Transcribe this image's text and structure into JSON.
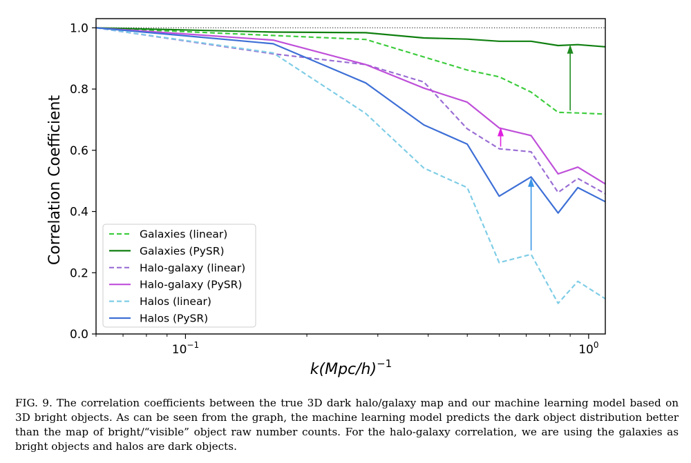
{
  "chart_data": {
    "type": "line",
    "xscale": "log",
    "xlim": [
      0.06,
      1.1
    ],
    "ylim": [
      0.0,
      1.03
    ],
    "xlabel": "k(Mpc/h)",
    "xlabel_superscript": "−1",
    "ylabel": "Correlation Coefficient",
    "xticks_major": [
      {
        "value": 0.1,
        "base": "10",
        "exp": "−1"
      },
      {
        "value": 1.0,
        "base": "10",
        "exp": "0"
      }
    ],
    "xticks_minor": [
      0.06,
      0.07,
      0.08,
      0.09,
      0.2,
      0.3,
      0.4,
      0.5,
      0.6,
      0.7,
      0.8,
      0.9
    ],
    "yticks": [
      "0.0",
      "0.2",
      "0.4",
      "0.6",
      "0.8",
      "1.0"
    ],
    "reference_line": {
      "y": 1.0,
      "style": "dotted",
      "color": "#000000"
    },
    "grid": false,
    "legend_position": "lower-left",
    "series": [
      {
        "name": "Galaxies (linear)",
        "color": "#3dcc3d",
        "dash": true,
        "x": [
          0.06,
          0.165,
          0.28,
          0.39,
          0.5,
          0.6,
          0.72,
          0.84,
          0.94,
          1.1
        ],
        "y": [
          1.0,
          0.975,
          0.962,
          0.905,
          0.862,
          0.84,
          0.79,
          0.724,
          0.722,
          0.718
        ]
      },
      {
        "name": "Galaxies (PySR)",
        "color": "#0f7f0f",
        "dash": false,
        "x": [
          0.06,
          0.165,
          0.28,
          0.39,
          0.5,
          0.6,
          0.72,
          0.84,
          0.94,
          1.1
        ],
        "y": [
          1.0,
          0.986,
          0.984,
          0.967,
          0.963,
          0.956,
          0.956,
          0.942,
          0.945,
          0.938
        ]
      },
      {
        "name": "Halo-galaxy (linear)",
        "color": "#9a6ed4",
        "dash": true,
        "x": [
          0.06,
          0.165,
          0.28,
          0.39,
          0.5,
          0.6,
          0.72,
          0.84,
          0.94,
          1.1
        ],
        "y": [
          1.0,
          0.915,
          0.88,
          0.823,
          0.67,
          0.605,
          0.595,
          0.462,
          0.508,
          0.458
        ]
      },
      {
        "name": "Halo-galaxy (PySR)",
        "color": "#bf4fd9",
        "dash": false,
        "x": [
          0.06,
          0.165,
          0.28,
          0.39,
          0.5,
          0.6,
          0.72,
          0.84,
          0.94,
          1.1
        ],
        "y": [
          1.0,
          0.96,
          0.88,
          0.803,
          0.757,
          0.673,
          0.648,
          0.523,
          0.545,
          0.49
        ]
      },
      {
        "name": "Halos (linear)",
        "color": "#7fcde6",
        "dash": true,
        "x": [
          0.06,
          0.165,
          0.28,
          0.39,
          0.5,
          0.6,
          0.72,
          0.84,
          0.94,
          1.1
        ],
        "y": [
          1.0,
          0.918,
          0.72,
          0.542,
          0.478,
          0.233,
          0.26,
          0.1,
          0.172,
          0.115
        ]
      },
      {
        "name": "Halos (PySR)",
        "color": "#3d6fd6",
        "dash": false,
        "x": [
          0.06,
          0.165,
          0.28,
          0.39,
          0.5,
          0.6,
          0.72,
          0.84,
          0.94,
          1.1
        ],
        "y": [
          1.0,
          0.948,
          0.82,
          0.683,
          0.62,
          0.45,
          0.513,
          0.395,
          0.478,
          0.432
        ]
      }
    ],
    "annotations": [
      {
        "type": "arrow",
        "color": "#1f8a1f",
        "x": 0.9,
        "y_from": 0.73,
        "y_to": 0.945
      },
      {
        "type": "arrow",
        "color": "#e020e0",
        "x": 0.605,
        "y_from": 0.612,
        "y_to": 0.675
      },
      {
        "type": "arrow",
        "color": "#3a95e8",
        "x": 0.72,
        "y_from": 0.273,
        "y_to": 0.51
      }
    ]
  },
  "caption": {
    "label": "FIG. 9.",
    "text": "The correlation coefficients between the true 3D dark halo/galaxy map and our machine learning model based on 3D bright objects. As can be seen from the graph, the machine learning model predicts the dark object distribution better than the map of bright/“visible” object raw number counts. For the halo-galaxy correlation, we are using the galaxies as bright objects and halos are dark objects."
  }
}
